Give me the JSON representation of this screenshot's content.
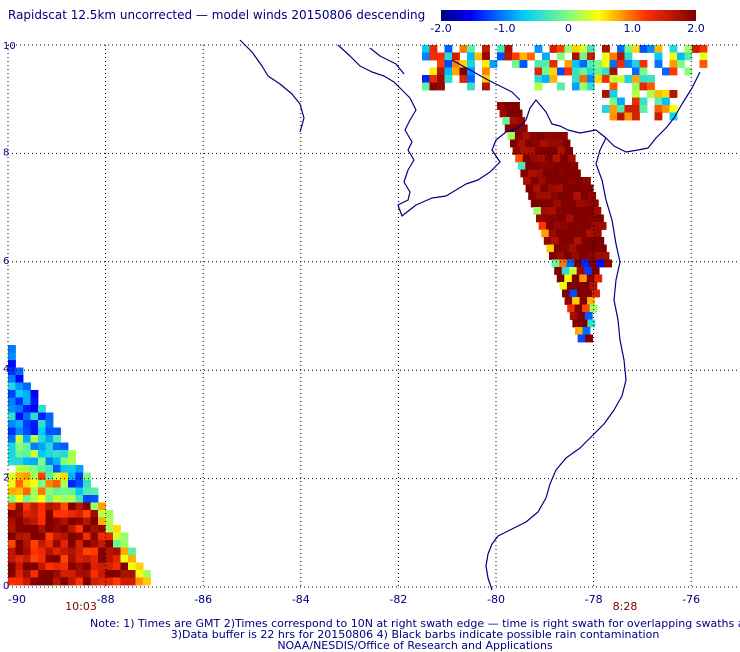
{
  "title": "Rapidscat 12.5km uncorrected — model winds 20150806 descending",
  "colorbar": {
    "ticks": [
      "-2.0",
      "-1.0",
      "0",
      "1.0",
      "2.0"
    ],
    "range": [
      -2.0,
      2.0
    ]
  },
  "map": {
    "lon_range": [
      -90,
      -75
    ],
    "lat_range": [
      0,
      10
    ],
    "lon_ticks": [
      "-90",
      "-88",
      "-86",
      "-84",
      "-82",
      "-80",
      "-78",
      "-76"
    ],
    "lat_ticks": [
      "0",
      "2",
      "4",
      "6",
      "8",
      "10"
    ],
    "swath_times": {
      "left": "10:03",
      "right": "8:28"
    }
  },
  "notes": {
    "line1": "Note: 1) Times are GMT 2)Times correspond to 10N at right swath edge — time is right swath for overlapping swaths at 10N",
    "line2": "3)Data buffer is 22 hrs for 20150806 4) Black barbs indicate possible rain contamination",
    "line3": "NOAA/NESDIS/Office of Research and Applications"
  },
  "colors": {
    "text": "#000080",
    "coastline": "#000080",
    "grid": "#000000",
    "time_label": "#800000"
  }
}
